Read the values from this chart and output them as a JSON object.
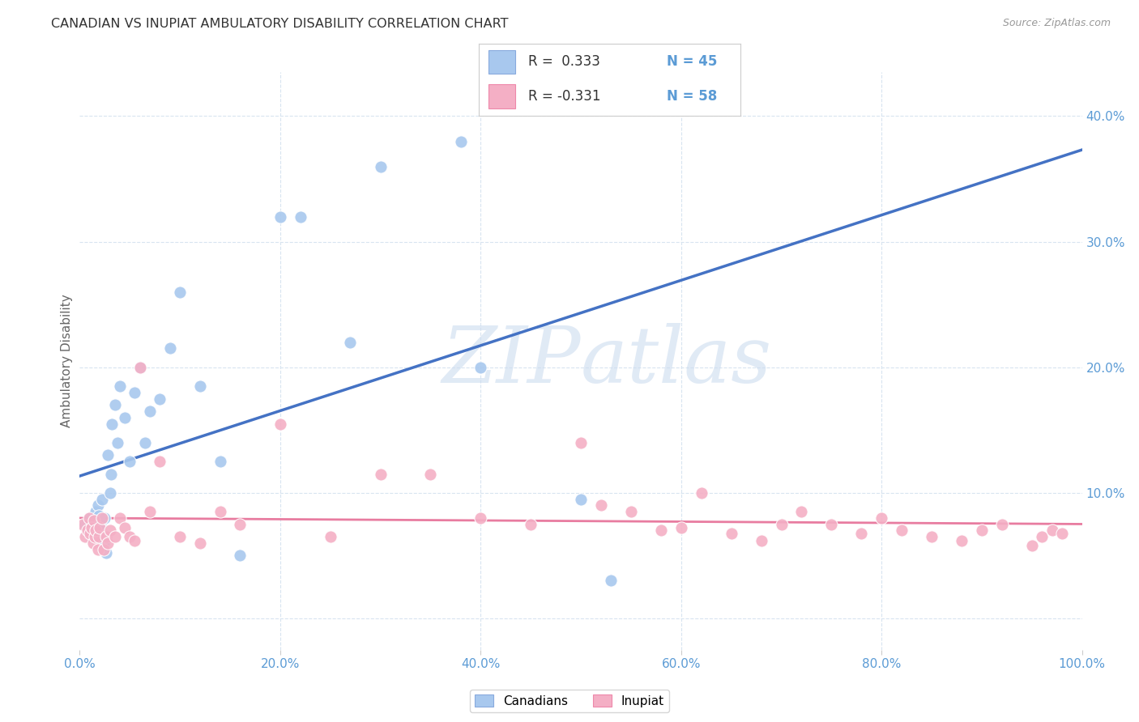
{
  "title": "CANADIAN VS INUPIAT AMBULATORY DISABILITY CORRELATION CHART",
  "source": "Source: ZipAtlas.com",
  "ylabel": "Ambulatory Disability",
  "xlim": [
    0.0,
    1.0
  ],
  "ylim": [
    -0.025,
    0.435
  ],
  "canadian_color": "#a8c8ee",
  "inupiat_color": "#f4afc5",
  "canadian_line_color": "#4472c4",
  "inupiat_line_color": "#e87ca0",
  "dashed_line_color": "#b8cfe8",
  "watermark_color": "#ccdcef",
  "grid_color": "#d8e4f0",
  "tick_color": "#5b9bd5",
  "canadians_x": [
    0.005,
    0.008,
    0.01,
    0.012,
    0.013,
    0.014,
    0.015,
    0.016,
    0.018,
    0.018,
    0.019,
    0.02,
    0.02,
    0.021,
    0.022,
    0.024,
    0.025,
    0.026,
    0.028,
    0.03,
    0.031,
    0.032,
    0.035,
    0.038,
    0.04,
    0.045,
    0.05,
    0.055,
    0.06,
    0.065,
    0.07,
    0.08,
    0.09,
    0.1,
    0.12,
    0.14,
    0.16,
    0.2,
    0.22,
    0.27,
    0.3,
    0.38,
    0.4,
    0.5,
    0.53
  ],
  "canadians_y": [
    0.075,
    0.07,
    0.08,
    0.065,
    0.078,
    0.07,
    0.072,
    0.085,
    0.09,
    0.076,
    0.082,
    0.065,
    0.07,
    0.075,
    0.095,
    0.06,
    0.08,
    0.052,
    0.13,
    0.1,
    0.115,
    0.155,
    0.17,
    0.14,
    0.185,
    0.16,
    0.125,
    0.18,
    0.2,
    0.14,
    0.165,
    0.175,
    0.215,
    0.26,
    0.185,
    0.125,
    0.05,
    0.32,
    0.32,
    0.22,
    0.36,
    0.38,
    0.2,
    0.095,
    0.03
  ],
  "inupiat_x": [
    0.003,
    0.005,
    0.008,
    0.009,
    0.01,
    0.012,
    0.013,
    0.014,
    0.015,
    0.016,
    0.018,
    0.019,
    0.02,
    0.022,
    0.024,
    0.026,
    0.028,
    0.03,
    0.035,
    0.04,
    0.045,
    0.05,
    0.055,
    0.06,
    0.07,
    0.08,
    0.1,
    0.12,
    0.14,
    0.16,
    0.2,
    0.25,
    0.3,
    0.35,
    0.4,
    0.45,
    0.5,
    0.52,
    0.55,
    0.58,
    0.6,
    0.62,
    0.65,
    0.68,
    0.7,
    0.72,
    0.75,
    0.78,
    0.8,
    0.82,
    0.85,
    0.88,
    0.9,
    0.92,
    0.95,
    0.96,
    0.97,
    0.98
  ],
  "inupiat_y": [
    0.075,
    0.065,
    0.07,
    0.08,
    0.068,
    0.072,
    0.06,
    0.078,
    0.065,
    0.07,
    0.055,
    0.065,
    0.072,
    0.08,
    0.055,
    0.065,
    0.06,
    0.07,
    0.065,
    0.08,
    0.072,
    0.065,
    0.062,
    0.2,
    0.085,
    0.125,
    0.065,
    0.06,
    0.085,
    0.075,
    0.155,
    0.065,
    0.115,
    0.115,
    0.08,
    0.075,
    0.14,
    0.09,
    0.085,
    0.07,
    0.072,
    0.1,
    0.068,
    0.062,
    0.075,
    0.085,
    0.075,
    0.068,
    0.08,
    0.07,
    0.065,
    0.062,
    0.07,
    0.075,
    0.058,
    0.065,
    0.07,
    0.068
  ]
}
